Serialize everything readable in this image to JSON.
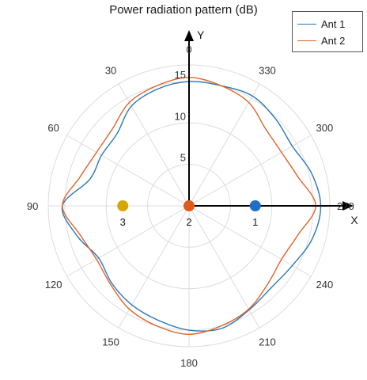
{
  "chart_data": {
    "type": "polar-line",
    "title": "Power radiation pattern (dB)",
    "angle_ticks": [
      "0",
      "30",
      "60",
      "90",
      "120",
      "150",
      "180",
      "210",
      "240",
      "270",
      "300",
      "330"
    ],
    "angle_direction": "counterclockwise",
    "zero_location": "top",
    "r_ticks": [
      "5",
      "10",
      "15"
    ],
    "r_lim": [
      0,
      17
    ],
    "grid": true,
    "legend": "top-right",
    "series": [
      {
        "name": "Ant 1",
        "color": "#2878b8",
        "theta_deg": [
          0,
          15,
          30,
          45,
          60,
          75,
          90,
          105,
          120,
          135,
          150,
          165,
          180,
          195,
          210,
          225,
          240,
          255,
          270,
          285,
          300,
          315,
          330,
          345
        ],
        "r": [
          15.0,
          14.6,
          13.9,
          12.3,
          12.2,
          12.4,
          15.3,
          14.0,
          12.6,
          13.2,
          13.8,
          14.3,
          15.0,
          15.3,
          14.5,
          14.0,
          14.4,
          15.4,
          15.9,
          15.3,
          14.4,
          14.8,
          15.3,
          15.0
        ]
      },
      {
        "name": "Ant 2",
        "color": "#e0642a",
        "theta_deg": [
          0,
          15,
          30,
          45,
          60,
          75,
          90,
          105,
          120,
          135,
          150,
          165,
          180,
          195,
          210,
          225,
          240,
          255,
          270,
          285,
          300,
          315,
          330,
          345
        ],
        "r": [
          15.5,
          15.0,
          14.4,
          13.1,
          12.9,
          13.6,
          15.3,
          13.6,
          12.9,
          13.4,
          14.4,
          15.0,
          15.5,
          15.0,
          14.4,
          13.4,
          12.9,
          13.6,
          15.3,
          13.6,
          12.9,
          13.1,
          14.4,
          15.0
        ]
      }
    ],
    "axes_labels": {
      "x": "X",
      "y": "Y"
    },
    "markers": [
      {
        "label": "1",
        "x": 8,
        "y": 0,
        "color": "#1f6fc7"
      },
      {
        "label": "2",
        "x": 0,
        "y": 0,
        "color": "#e05a1c"
      },
      {
        "label": "3",
        "x": -8,
        "y": 0,
        "color": "#d4a800"
      }
    ]
  }
}
